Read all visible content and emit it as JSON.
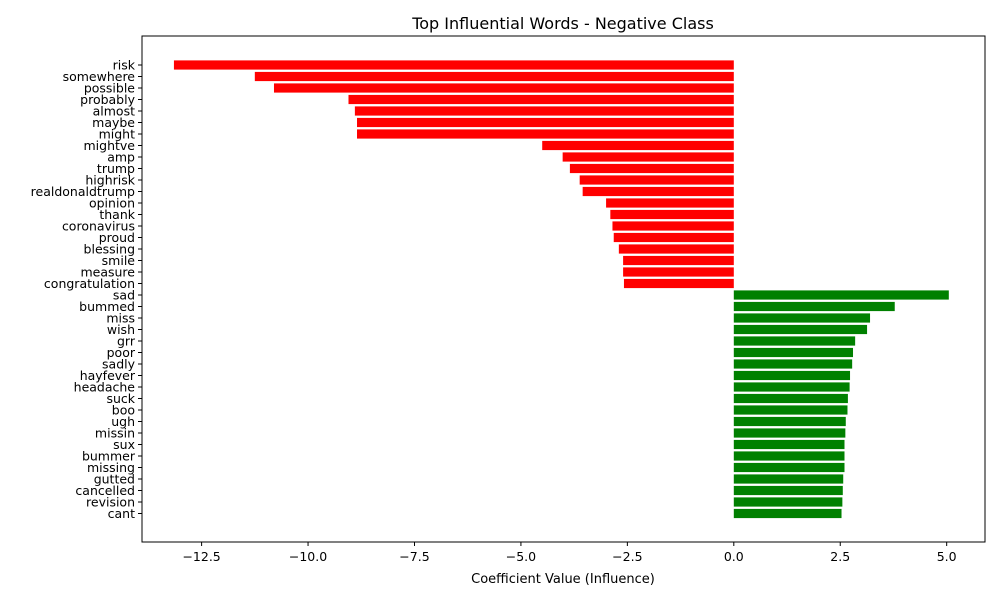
{
  "chart_data": {
    "type": "bar",
    "orientation": "horizontal",
    "title": "Top Influential Words - Negative Class",
    "xlabel": "Coefficient Value (Influence)",
    "ylabel": "",
    "xlim": [
      -13.9,
      5.9
    ],
    "x_ticks": [
      -12.5,
      -10.0,
      -7.5,
      -5.0,
      -2.5,
      0.0,
      2.5,
      5.0
    ],
    "x_tick_labels": [
      "−12.5",
      "−10.0",
      "−7.5",
      "−5.0",
      "−2.5",
      "0.0",
      "2.5",
      "5.0"
    ],
    "grid": false,
    "legend": "none",
    "colors": {
      "negative": "#ff0000",
      "positive": "#008000"
    },
    "categories": [
      "risk",
      "somewhere",
      "possible",
      "probably",
      "almost",
      "maybe",
      "might",
      "mightve",
      "amp",
      "trump",
      "highrisk",
      "realdonaldtrump",
      "opinion",
      "thank",
      "coronavirus",
      "proud",
      "blessing",
      "smile",
      "measure",
      "congratulation",
      "sad",
      "bummed",
      "miss",
      "wish",
      "grr",
      "poor",
      "sadly",
      "hayfever",
      "headache",
      "suck",
      "boo",
      "ugh",
      "missin",
      "sux",
      "bummer",
      "missing",
      "gutted",
      "cancelled",
      "revision",
      "cant"
    ],
    "values": [
      -13.15,
      -11.25,
      -10.8,
      -9.05,
      -8.9,
      -8.85,
      -8.85,
      -4.5,
      -4.02,
      -3.85,
      -3.62,
      -3.55,
      -3.0,
      -2.9,
      -2.85,
      -2.82,
      -2.7,
      -2.6,
      -2.6,
      -2.58,
      5.05,
      3.78,
      3.2,
      3.13,
      2.85,
      2.8,
      2.78,
      2.73,
      2.72,
      2.68,
      2.67,
      2.63,
      2.62,
      2.6,
      2.6,
      2.6,
      2.57,
      2.56,
      2.55,
      2.53
    ]
  }
}
